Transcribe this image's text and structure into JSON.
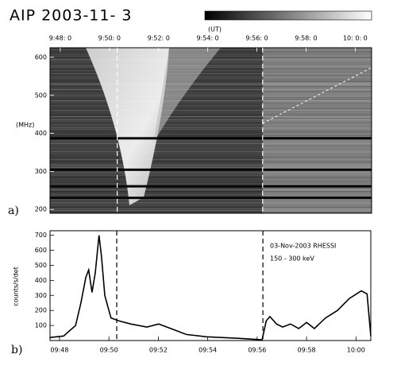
{
  "chart_data": [
    {
      "type": "spectrogram",
      "title": "AIP 2003-11- 3",
      "colorbar_label": "(UT)",
      "ylabel": "(MHz)",
      "panel_label": "a)",
      "xlim": [
        "09:47:35",
        "10:00:40"
      ],
      "xticks": [
        {
          "value": "09:48:00",
          "label": "9:48: 0"
        },
        {
          "value": "09:50:00",
          "label": "9:50: 0"
        },
        {
          "value": "09:52:00",
          "label": "9:52: 0"
        },
        {
          "value": "09:54:00",
          "label": "9:54: 0"
        },
        {
          "value": "09:56:00",
          "label": "9:56: 0"
        },
        {
          "value": "09:58:00",
          "label": "9:58: 0"
        },
        {
          "value": "10:00:00",
          "label": "10: 0: 0"
        }
      ],
      "ylim": [
        190,
        625
      ],
      "yticks": [
        200,
        300,
        400,
        500,
        600
      ],
      "dashed_lines": [
        "09:50:19",
        "09:56:14"
      ]
    },
    {
      "type": "line",
      "panel_label": "b)",
      "ylabel": "counts/s/det",
      "annotations": [
        "03-Nov-2003 RHESSI",
        "150 - 300 keV"
      ],
      "x": [
        "09:47:37",
        "09:48:10",
        "09:48:39",
        "09:48:52",
        "09:49:04",
        "09:49:11",
        "09:49:19",
        "09:49:27",
        "09:49:36",
        "09:49:42",
        "09:49:50",
        "09:49:58",
        "09:50:05",
        "09:50:25",
        "09:50:53",
        "09:51:32",
        "09:52:01",
        "09:52:30",
        "09:53:08",
        "09:53:57",
        "09:55:14",
        "09:56:12",
        "09:56:22",
        "09:56:31",
        "09:56:47",
        "09:57:02",
        "09:57:21",
        "09:57:41",
        "09:58:00",
        "09:58:19",
        "09:58:46",
        "09:59:15",
        "09:59:44",
        "10:00:13",
        "10:00:27",
        "10:00:36"
      ],
      "values": [
        20,
        30,
        100,
        250,
        420,
        470,
        320,
        450,
        700,
        560,
        300,
        220,
        150,
        130,
        110,
        90,
        110,
        80,
        40,
        25,
        15,
        5,
        130,
        160,
        110,
        90,
        110,
        80,
        120,
        80,
        150,
        200,
        280,
        330,
        310,
        30
      ],
      "color": "#000000",
      "xlim": [
        "09:47:37",
        "10:00:36"
      ],
      "xticks": [
        {
          "value": "09:48:00",
          "label": "09:48"
        },
        {
          "value": "09:50:00",
          "label": "09:50"
        },
        {
          "value": "09:52:00",
          "label": "09:52"
        },
        {
          "value": "09:54:00",
          "label": "09:54"
        },
        {
          "value": "09:56:00",
          "label": "09:56"
        },
        {
          "value": "09:58:00",
          "label": "09:58"
        },
        {
          "value": "10:00:00",
          "label": "10:00"
        }
      ],
      "ylim": [
        0,
        730
      ],
      "yticks": [
        100,
        200,
        300,
        400,
        500,
        600,
        700
      ],
      "dashed_lines": [
        "09:50:19",
        "09:56:14"
      ]
    }
  ]
}
